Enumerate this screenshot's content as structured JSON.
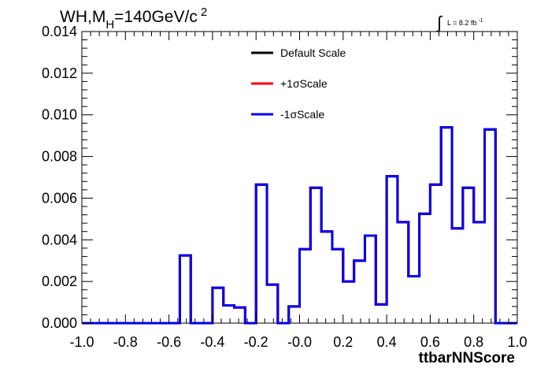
{
  "chart_data": {
    "type": "line",
    "title": "WH,M =140GeV/c",
    "title_parts": {
      "main": "WH,M",
      "sub": "H",
      "rest": "=140GeV/c",
      "sup": "2"
    },
    "lumi": {
      "integral_sign": "∫",
      "text": "L = 8.2 fb",
      "sup": "-1"
    },
    "xlabel": "ttbarNNScore",
    "ylabel": "",
    "xlim": [
      -1.0,
      1.0
    ],
    "ylim": [
      0.0,
      0.014
    ],
    "grid": false,
    "legend_placement": "top-center",
    "x_tick_labels": [
      "-1.0",
      "-0.8",
      "-0.6",
      "-0.4",
      "-0.2",
      "-0.0",
      "0.2",
      "0.4",
      "0.6",
      "0.8",
      "1.0"
    ],
    "y_tick_labels": [
      "0.000",
      "0.002",
      "0.004",
      "0.006",
      "0.008",
      "0.010",
      "0.012",
      "0.014"
    ],
    "bins": {
      "low": -1.0,
      "high": 1.0,
      "count": 40
    },
    "series": [
      {
        "name": "Default Scale",
        "color": "#000000",
        "values": [
          0,
          0,
          0,
          0,
          0,
          0,
          0,
          0,
          0,
          0.00325,
          0,
          0,
          0.0017,
          0.00085,
          0.00075,
          0,
          0.00665,
          0.00185,
          0,
          0.0008,
          0.00355,
          0.0065,
          0.0044,
          0.00355,
          0.002,
          0.003,
          0.0042,
          0.0009,
          0.00705,
          0.00485,
          0.00225,
          0.00525,
          0.00665,
          0.0094,
          0.00455,
          0.0065,
          0.00485,
          0.0093,
          0,
          0
        ]
      },
      {
        "name": "+1σScale",
        "color": "#ff0000",
        "values": [
          0,
          0,
          0,
          0,
          0,
          0,
          0,
          0,
          0,
          0.00325,
          0,
          0,
          0.0017,
          0.00085,
          0.00075,
          0,
          0.00665,
          0.00185,
          0,
          0.0008,
          0.00355,
          0.0065,
          0.0044,
          0.00355,
          0.002,
          0.003,
          0.0042,
          0.0009,
          0.00705,
          0.00485,
          0.00225,
          0.00525,
          0.00665,
          0.0094,
          0.00455,
          0.0065,
          0.00485,
          0.0093,
          0,
          0
        ]
      },
      {
        "name": "-1σScale",
        "color": "#0000ee",
        "values": [
          0,
          0,
          0,
          0,
          0,
          0,
          0,
          0,
          0,
          0.00325,
          0,
          0,
          0.0017,
          0.00085,
          0.00075,
          0,
          0.00665,
          0.00185,
          0,
          0.0008,
          0.00355,
          0.0065,
          0.0044,
          0.00355,
          0.002,
          0.003,
          0.0042,
          0.0009,
          0.00705,
          0.00485,
          0.00225,
          0.00525,
          0.00665,
          0.0094,
          0.00455,
          0.0065,
          0.00485,
          0.0093,
          0,
          0
        ]
      }
    ]
  }
}
